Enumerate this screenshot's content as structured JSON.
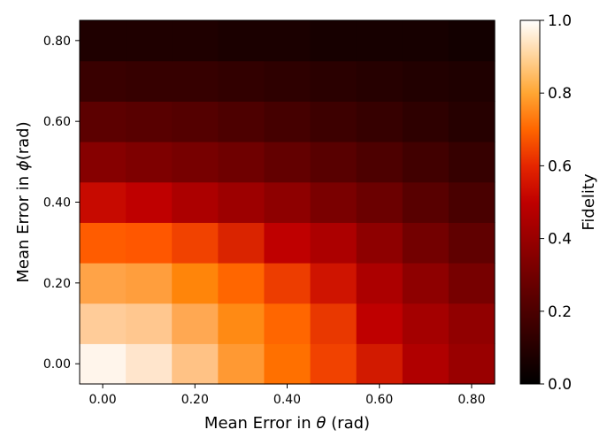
{
  "chart_data": {
    "type": "heatmap",
    "colormap": "gist_heat",
    "x_values": [
      0.0,
      0.1,
      0.2,
      0.3,
      0.4,
      0.5,
      0.6,
      0.7,
      0.8
    ],
    "y_values": [
      0.0,
      0.1,
      0.2,
      0.3,
      0.4,
      0.5,
      0.6,
      0.7,
      0.8
    ],
    "x_tick_values": [
      0.0,
      0.2,
      0.4,
      0.6,
      0.8
    ],
    "y_tick_values": [
      0.0,
      0.2,
      0.4,
      0.6,
      0.8
    ],
    "x_tick_labels": [
      "0.00",
      "0.20",
      "0.40",
      "0.60",
      "0.80"
    ],
    "y_tick_labels": [
      "0.00",
      "0.20",
      "0.40",
      "0.60",
      "0.80"
    ],
    "xlim": [
      -0.05,
      0.85
    ],
    "ylim": [
      -0.05,
      0.85
    ],
    "values_by_y": [
      [
        0.98,
        0.95,
        0.88,
        0.8,
        0.72,
        0.63,
        0.55,
        0.46,
        0.4
      ],
      [
        0.9,
        0.89,
        0.83,
        0.77,
        0.7,
        0.61,
        0.5,
        0.43,
        0.38
      ],
      [
        0.82,
        0.81,
        0.76,
        0.7,
        0.62,
        0.54,
        0.45,
        0.37,
        0.31
      ],
      [
        0.68,
        0.67,
        0.63,
        0.57,
        0.5,
        0.45,
        0.37,
        0.3,
        0.25
      ],
      [
        0.52,
        0.5,
        0.45,
        0.41,
        0.37,
        0.32,
        0.28,
        0.23,
        0.19
      ],
      [
        0.35,
        0.33,
        0.31,
        0.29,
        0.26,
        0.23,
        0.2,
        0.17,
        0.14
      ],
      [
        0.24,
        0.23,
        0.22,
        0.2,
        0.18,
        0.16,
        0.14,
        0.12,
        0.1
      ],
      [
        0.15,
        0.14,
        0.14,
        0.13,
        0.12,
        0.11,
        0.1,
        0.09,
        0.08
      ],
      [
        0.08,
        0.08,
        0.08,
        0.07,
        0.07,
        0.06,
        0.06,
        0.06,
        0.05
      ]
    ],
    "xlabel_prefix": "Mean Error in ",
    "xlabel_symbol": "θ",
    "xlabel_suffix": " (rad)",
    "ylabel_prefix": "Mean Error in ",
    "ylabel_symbol": "ϕ",
    "ylabel_suffix": "(rad)",
    "colorbar": {
      "label": "Fidelity",
      "range": [
        0.0,
        1.0
      ],
      "tick_values": [
        0.0,
        0.2,
        0.4,
        0.6,
        0.8,
        1.0
      ],
      "tick_labels": [
        "0.0",
        "0.2",
        "0.4",
        "0.6",
        "0.8",
        "1.0"
      ]
    }
  }
}
